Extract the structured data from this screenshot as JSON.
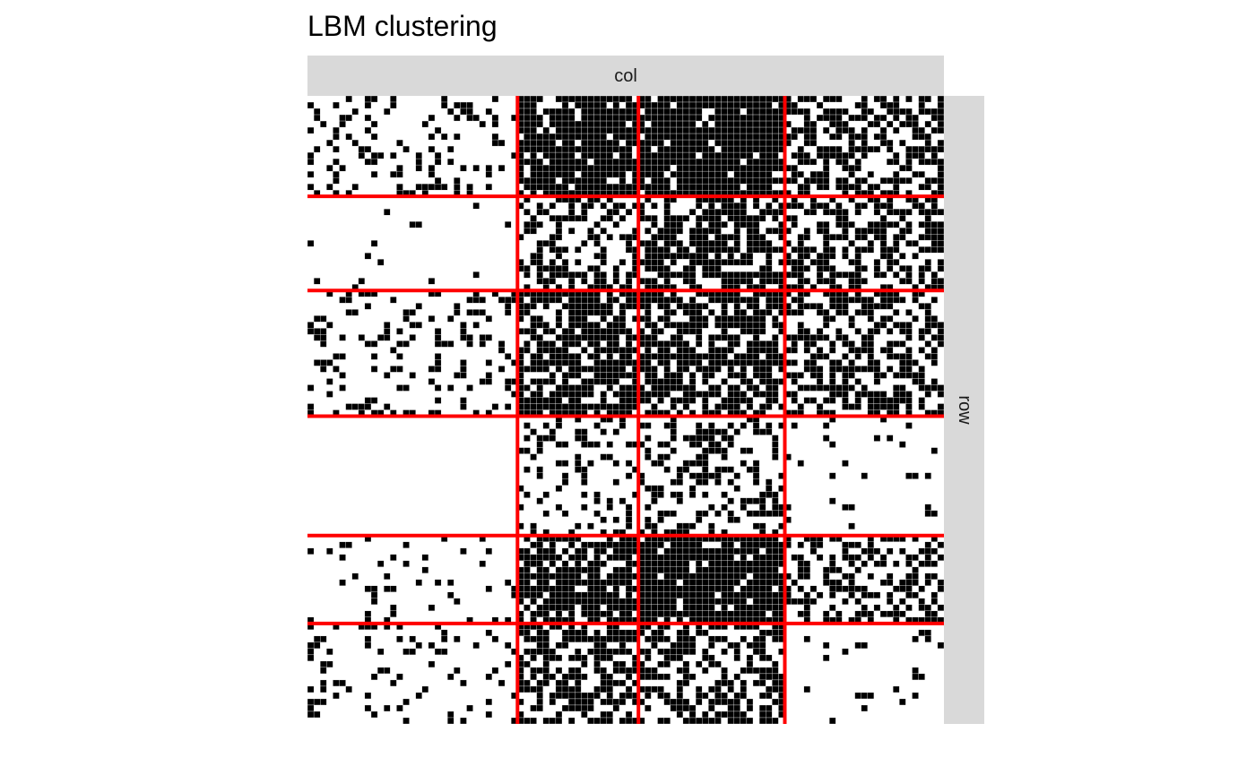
{
  "chart_data": {
    "type": "heatmap",
    "title": "LBM clustering",
    "facet_col_label": "col",
    "facet_row_label": "row",
    "n_rows": 100,
    "n_cols": 100,
    "row_group_sizes": [
      16,
      15,
      20,
      19,
      14,
      16
    ],
    "col_group_sizes": [
      33,
      19,
      23,
      25
    ],
    "block_densities": [
      [
        0.25,
        0.85,
        0.92,
        0.55
      ],
      [
        0.03,
        0.45,
        0.65,
        0.55
      ],
      [
        0.22,
        0.72,
        0.68,
        0.52
      ],
      [
        0.0,
        0.25,
        0.38,
        0.05
      ],
      [
        0.1,
        0.75,
        0.92,
        0.5
      ],
      [
        0.15,
        0.62,
        0.55,
        0.07
      ]
    ],
    "colors": {
      "filled": "#000000",
      "empty": "#ffffff",
      "block_separator": "#ff0000",
      "strip_background": "#d9d9d9",
      "cell_grid": "#ffffff"
    }
  }
}
